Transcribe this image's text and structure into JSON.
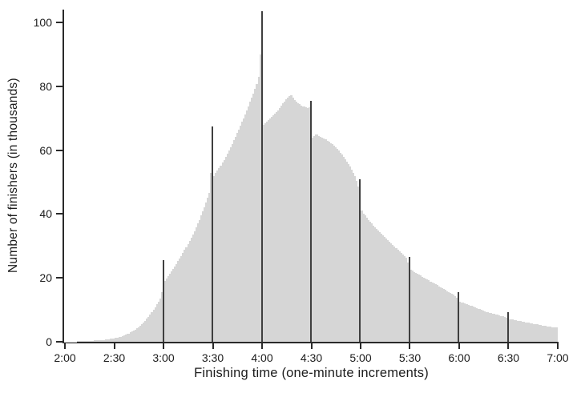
{
  "chart_data": {
    "type": "bar",
    "title": "",
    "xlabel": "Finishing time (one-minute increments)",
    "ylabel": "Number of finishers (in thousands)",
    "x_tick_labels": [
      "2:00",
      "2:30",
      "3:00",
      "3:30",
      "4:00",
      "4:30",
      "5:00",
      "5:30",
      "6:00",
      "6:30",
      "7:00"
    ],
    "x_tick_interval_minutes": 30,
    "y_ticks": [
      0,
      20,
      40,
      60,
      80,
      100
    ],
    "ylim": [
      0,
      104
    ],
    "x_start_minutes": 120,
    "x_end_minutes": 420,
    "increment_minutes": 1,
    "grid": false,
    "legend": "none",
    "bar_color": "#d6d6d6",
    "spike_color": "#3f3f3f",
    "axis_color": "#2a2a2a",
    "text_color": "#1c1c1c",
    "spike_minutes": [
      180,
      210,
      240,
      270,
      300,
      330,
      360,
      390
    ],
    "values": [
      0.1,
      0.1,
      0.1,
      0.1,
      0.1,
      0.1,
      0.1,
      0.1,
      0.2,
      0.2,
      0.2,
      0.2,
      0.2,
      0.2,
      0.3,
      0.3,
      0.3,
      0.3,
      0.4,
      0.4,
      0.4,
      0.5,
      0.5,
      0.6,
      0.6,
      0.7,
      0.7,
      0.8,
      0.9,
      1.0,
      1.1,
      1.2,
      1.3,
      1.5,
      1.6,
      1.8,
      2.0,
      2.2,
      2.4,
      2.6,
      2.9,
      3.2,
      3.5,
      3.8,
      4.2,
      4.6,
      5.0,
      5.5,
      6.0,
      6.6,
      7.2,
      7.8,
      8.5,
      9.2,
      10.0,
      10.8,
      11.7,
      12.6,
      13.6,
      15.5,
      25.5,
      19.0,
      19.8,
      20.5,
      21.2,
      22.0,
      22.8,
      23.6,
      24.4,
      25.2,
      26.0,
      26.9,
      27.8,
      28.7,
      29.6,
      30.5,
      31.5,
      32.5,
      33.6,
      34.7,
      35.8,
      37.0,
      38.2,
      39.5,
      40.8,
      42.2,
      43.6,
      45.0,
      46.5,
      53.0,
      67.5,
      52.0,
      52.8,
      53.6,
      54.4,
      55.2,
      56.1,
      57.0,
      58.0,
      59.0,
      60.0,
      61.0,
      62.0,
      63.1,
      64.2,
      65.3,
      66.4,
      67.6,
      68.8,
      70.0,
      71.2,
      72.5,
      73.8,
      75.1,
      76.4,
      77.8,
      79.2,
      80.6,
      83.0,
      90.0,
      103.5,
      68.0,
      68.5,
      69.0,
      69.5,
      70.0,
      70.5,
      71.0,
      71.5,
      72.0,
      72.5,
      73.2,
      73.9,
      74.6,
      75.3,
      76.0,
      76.5,
      77.0,
      77.2,
      76.5,
      75.8,
      75.2,
      74.8,
      74.4,
      74.0,
      73.8,
      73.6,
      73.4,
      73.2,
      73.5,
      75.5,
      64.0,
      64.5,
      65.0,
      64.8,
      64.5,
      64.2,
      63.9,
      63.6,
      63.3,
      63.0,
      62.6,
      62.2,
      61.8,
      61.4,
      61.0,
      60.4,
      59.8,
      59.2,
      58.6,
      58.0,
      57.2,
      56.4,
      55.6,
      54.8,
      54.0,
      53.0,
      52.0,
      50.5,
      48.5,
      51.0,
      41.0,
      40.2,
      39.5,
      38.8,
      38.2,
      37.6,
      37.0,
      36.4,
      35.9,
      35.4,
      34.9,
      34.4,
      33.9,
      33.4,
      32.9,
      32.4,
      31.9,
      31.4,
      30.9,
      30.4,
      29.9,
      29.4,
      28.9,
      28.4,
      27.9,
      27.4,
      26.9,
      26.3,
      24.8,
      26.5,
      22.5,
      22.2,
      21.9,
      21.6,
      21.3,
      21.0,
      20.7,
      20.4,
      20.1,
      19.8,
      19.5,
      19.2,
      18.9,
      18.6,
      18.3,
      18.0,
      17.7,
      17.4,
      17.1,
      16.8,
      16.5,
      16.2,
      15.9,
      15.6,
      15.3,
      15.0,
      14.7,
      14.4,
      13.8,
      15.5,
      12.6,
      12.4,
      12.2,
      12.0,
      11.8,
      11.6,
      11.4,
      11.2,
      11.0,
      10.8,
      10.6,
      10.4,
      10.2,
      10.0,
      9.8,
      9.6,
      9.4,
      9.3,
      9.1,
      9.0,
      8.8,
      8.7,
      8.5,
      8.4,
      8.2,
      8.1,
      7.9,
      7.8,
      7.5,
      9.2,
      7.1,
      7.0,
      6.9,
      6.8,
      6.7,
      6.6,
      6.5,
      6.4,
      6.3,
      6.2,
      6.1,
      6.0,
      5.9,
      5.8,
      5.7,
      5.6,
      5.5,
      5.4,
      5.3,
      5.2,
      5.1,
      5.0,
      4.9,
      4.8,
      4.8,
      4.7,
      4.6,
      4.5,
      4.5,
      4.4
    ]
  }
}
